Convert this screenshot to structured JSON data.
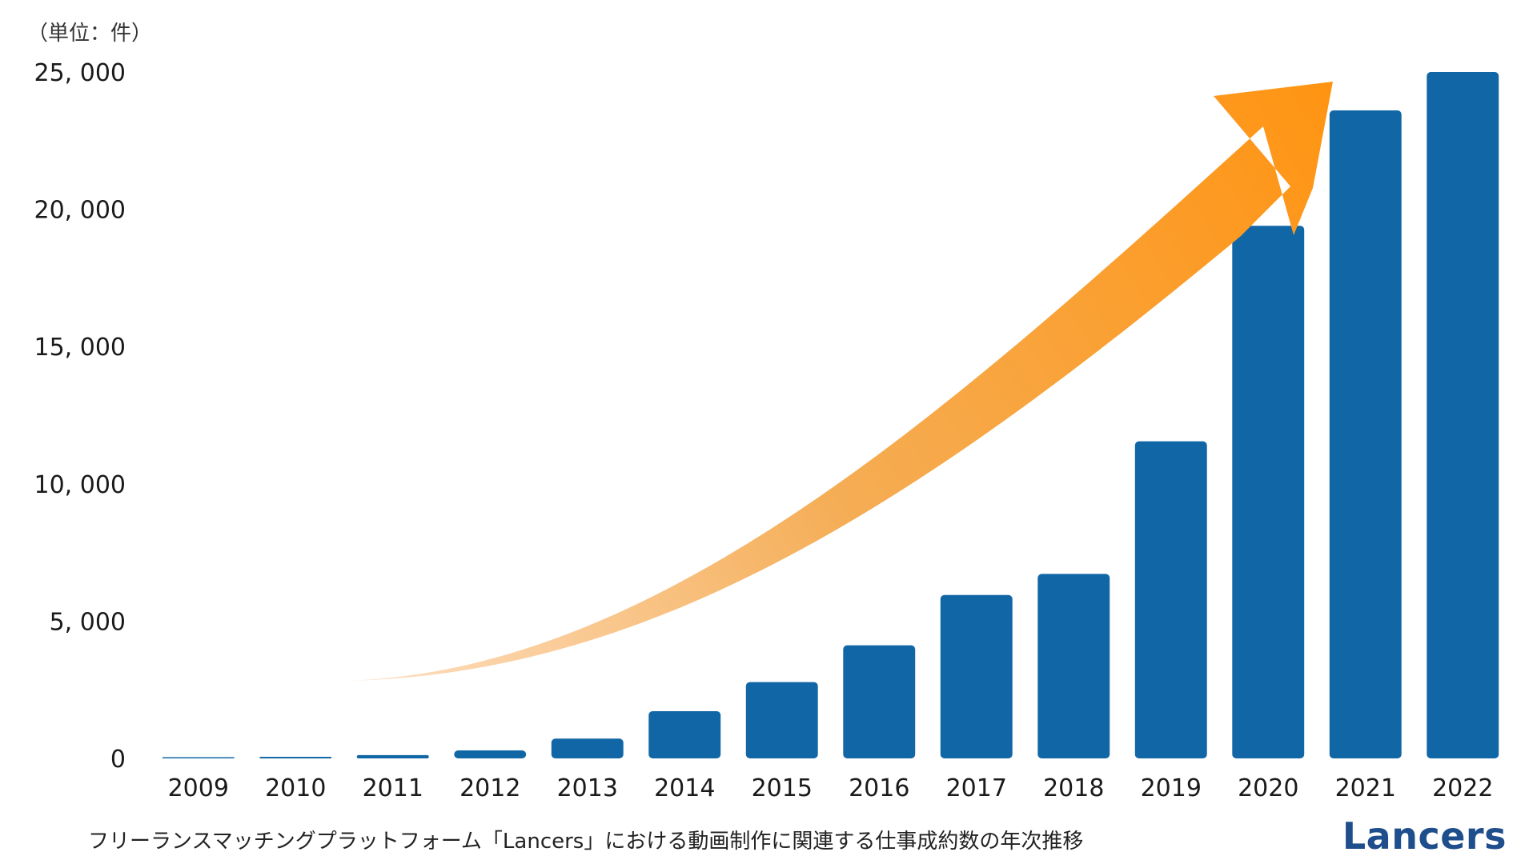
{
  "chart_data": {
    "type": "bar",
    "unit_label": "（単位：件）",
    "categories": [
      "2009",
      "2010",
      "2011",
      "2012",
      "2013",
      "2014",
      "2015",
      "2016",
      "2017",
      "2018",
      "2019",
      "2020",
      "2021",
      "2022"
    ],
    "values": [
      30,
      60,
      120,
      290,
      720,
      1720,
      2780,
      4120,
      5950,
      6720,
      11550,
      19400,
      23600,
      25000
    ],
    "ylim": [
      0,
      25000
    ],
    "yticks": [
      0,
      5000,
      10000,
      15000,
      20000,
      25000
    ],
    "ytick_labels": [
      "0",
      "5, 000",
      "10, 000",
      "15, 000",
      "20, 000",
      "25, 000"
    ],
    "bar_color": "#1166a6",
    "arrow_colors": [
      "#fde0c4",
      "#ff9412"
    ],
    "grid": false,
    "annotation": "growth-arrow"
  },
  "caption": "フリーランスマッチングプラットフォーム「Lancers」における動画制作に関連する仕事成約数の年次推移",
  "brand": "Lancers"
}
